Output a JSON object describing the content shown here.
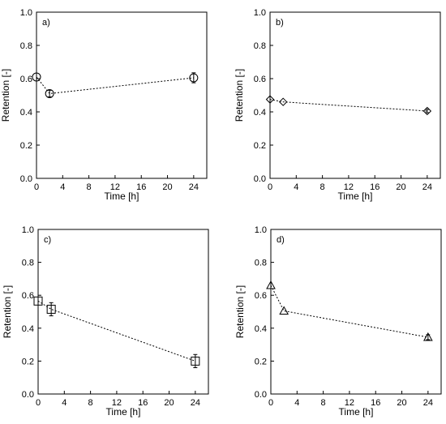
{
  "chart_data": [
    {
      "type": "scatter",
      "panel_label": "a)",
      "xlabel": "Time [h]",
      "ylabel": "Retention [-]",
      "xlim": [
        0,
        26
      ],
      "ylim": [
        0,
        1.0
      ],
      "xticks": [
        0,
        4,
        8,
        12,
        16,
        20,
        24
      ],
      "yticks": [
        0.0,
        0.2,
        0.4,
        0.6,
        0.8,
        1.0
      ],
      "marker": "circle",
      "series": [
        {
          "x": [
            0,
            2,
            24
          ],
          "y": [
            0.61,
            0.51,
            0.605
          ],
          "yerr": [
            0.0,
            0.02,
            0.03
          ]
        }
      ]
    },
    {
      "type": "scatter",
      "panel_label": "b)",
      "xlabel": "Time [h]",
      "ylabel": "Retention [-]",
      "xlim": [
        0,
        26
      ],
      "ylim": [
        0,
        1.0
      ],
      "xticks": [
        0,
        4,
        8,
        12,
        16,
        20,
        24
      ],
      "yticks": [
        0.0,
        0.2,
        0.4,
        0.6,
        0.8,
        1.0
      ],
      "marker": "diamond",
      "series": [
        {
          "x": [
            0,
            2,
            24
          ],
          "y": [
            0.475,
            0.46,
            0.405
          ],
          "yerr": [
            0.0,
            0.0,
            0.01
          ]
        }
      ]
    },
    {
      "type": "scatter",
      "panel_label": "c)",
      "xlabel": "Time [h]",
      "ylabel": "Retention [-]",
      "xlim": [
        0,
        26
      ],
      "ylim": [
        0,
        1.0
      ],
      "xticks": [
        0,
        4,
        8,
        12,
        16,
        20,
        24
      ],
      "yticks": [
        0.0,
        0.2,
        0.4,
        0.6,
        0.8,
        1.0
      ],
      "marker": "square",
      "series": [
        {
          "x": [
            0,
            2,
            24
          ],
          "y": [
            0.565,
            0.515,
            0.2
          ],
          "yerr": [
            0.0,
            0.04,
            0.04
          ]
        }
      ]
    },
    {
      "type": "scatter",
      "panel_label": "d)",
      "xlabel": "Time [h]",
      "ylabel": "Retention [-]",
      "xlim": [
        0,
        26
      ],
      "ylim": [
        0,
        1.0
      ],
      "xticks": [
        0,
        4,
        8,
        12,
        16,
        20,
        24
      ],
      "yticks": [
        0.0,
        0.2,
        0.4,
        0.6,
        0.8,
        1.0
      ],
      "marker": "triangle",
      "series": [
        {
          "x": [
            0,
            2,
            24
          ],
          "y": [
            0.66,
            0.505,
            0.345
          ],
          "yerr": [
            0.0,
            0.0,
            0.015
          ]
        }
      ]
    }
  ]
}
